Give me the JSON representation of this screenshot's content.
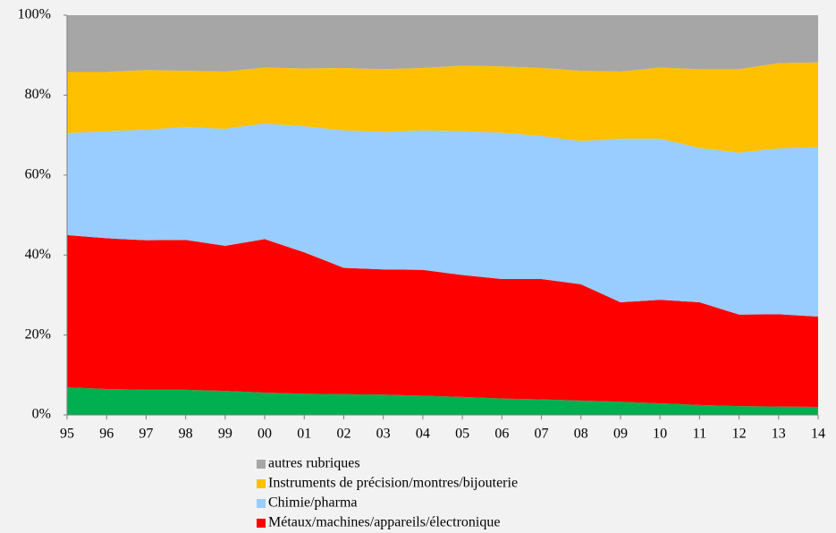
{
  "chart_data": {
    "type": "stacked_area",
    "categories": [
      "95",
      "96",
      "97",
      "98",
      "99",
      "00",
      "01",
      "02",
      "03",
      "04",
      "05",
      "06",
      "07",
      "08",
      "09",
      "10",
      "11",
      "12",
      "13",
      "14"
    ],
    "series": [
      {
        "color": "#00b050",
        "values": [
          6.9,
          6.5,
          6.3,
          6.3,
          6.0,
          5.6,
          5.3,
          5.2,
          5.1,
          4.8,
          4.5,
          4.1,
          3.9,
          3.6,
          3.3,
          2.9,
          2.5,
          2.2,
          2.1,
          2.0
        ]
      },
      {
        "name": "Métaux/machines/appareils/électronique",
        "color": "#ff0000",
        "values": [
          38.1,
          37.7,
          37.4,
          37.5,
          36.3,
          38.4,
          35.4,
          31.6,
          31.3,
          31.5,
          30.5,
          29.9,
          30.1,
          29.1,
          24.9,
          25.9,
          25.7,
          22.9,
          23.1,
          22.6
        ]
      },
      {
        "name": "Chimie/pharma",
        "color": "#99ccff",
        "values": [
          25.5,
          26.8,
          27.7,
          28.2,
          29.3,
          28.9,
          31.5,
          34.4,
          34.4,
          34.9,
          36.0,
          36.6,
          35.8,
          35.8,
          40.9,
          40.3,
          38.6,
          40.5,
          41.5,
          42.4
        ]
      },
      {
        "name": "Instruments de précision/montres/bijouterie",
        "color": "#ffc000",
        "values": [
          15.3,
          14.8,
          14.9,
          14.1,
          14.3,
          14.0,
          14.5,
          15.6,
          15.7,
          15.6,
          16.4,
          16.6,
          17.0,
          17.6,
          16.8,
          17.8,
          19.7,
          20.9,
          21.3,
          21.2
        ]
      },
      {
        "name": "autres rubriques",
        "color": "#a6a6a6",
        "values": [
          14.2,
          14.2,
          13.7,
          13.9,
          14.1,
          13.1,
          13.3,
          13.2,
          13.5,
          13.2,
          12.6,
          12.8,
          13.2,
          13.9,
          14.1,
          13.1,
          13.5,
          13.5,
          12.0,
          11.8
        ]
      }
    ],
    "ylim": [
      0,
      100
    ],
    "yticks": [
      {
        "value": 0,
        "label": "0%"
      },
      {
        "value": 20,
        "label": "20%"
      },
      {
        "value": 40,
        "label": "40%"
      },
      {
        "value": 60,
        "label": "60%"
      },
      {
        "value": 80,
        "label": "80%"
      },
      {
        "value": 100,
        "label": "100%"
      }
    ]
  }
}
